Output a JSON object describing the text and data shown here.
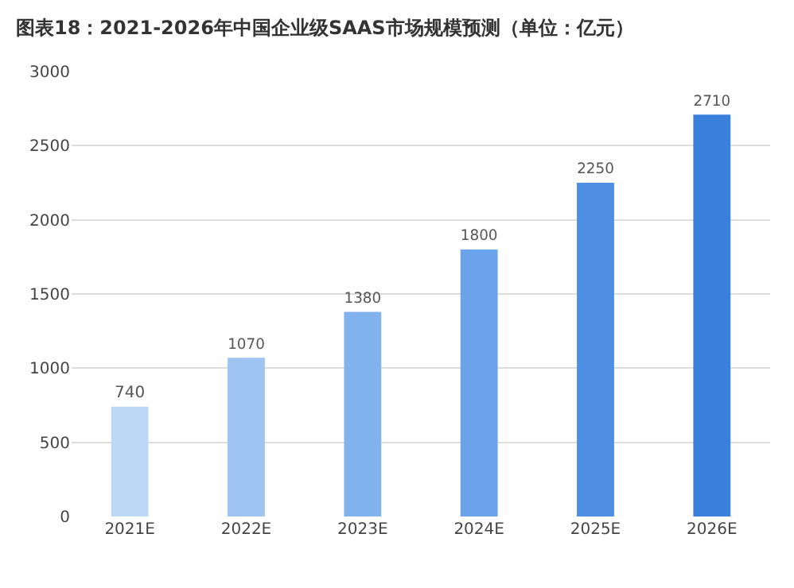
{
  "chart_data": {
    "type": "bar",
    "title": "图表18：2021-2026年中国企业级SAAS市场规模预测（单位：亿元）",
    "categories": [
      "2021E",
      "2022E",
      "2023E",
      "2024E",
      "2025E",
      "2026E"
    ],
    "values": [
      740,
      1070,
      1380,
      1800,
      2250,
      2710
    ],
    "colors": [
      "#bdd7f7",
      "#9fc4f2",
      "#82b2ee",
      "#6aa3ea",
      "#4f8fe3",
      "#3b7fdd"
    ],
    "ylim": [
      0,
      3000
    ],
    "yticks": [
      0,
      500,
      1000,
      1500,
      2000,
      2500,
      3000
    ],
    "grid": "y",
    "data_labels": true
  }
}
